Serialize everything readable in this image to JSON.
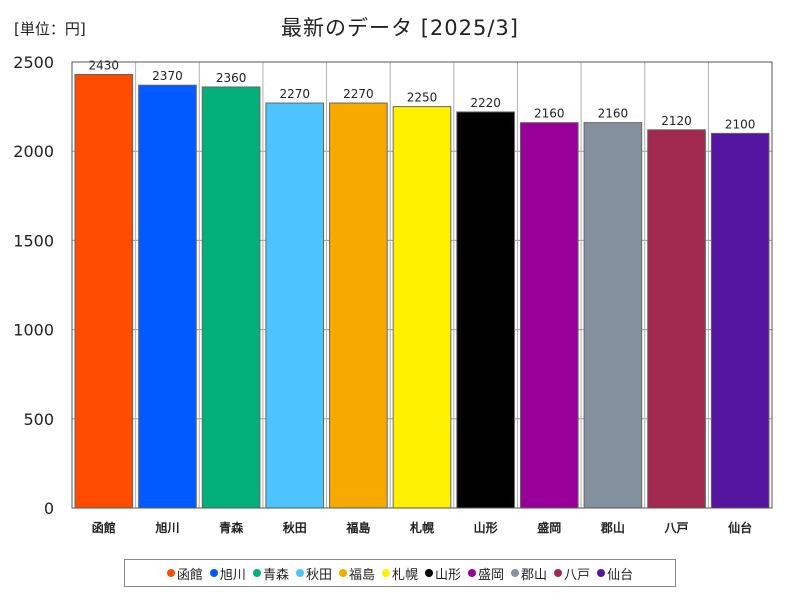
{
  "chart_data": {
    "type": "bar",
    "title": "最新のデータ [2025/3]",
    "unit_label": "[単位：円]",
    "categories": [
      "函館",
      "旭川",
      "青森",
      "秋田",
      "福島",
      "札幌",
      "山形",
      "盛岡",
      "郡山",
      "八戸",
      "仙台"
    ],
    "values": [
      2430,
      2370,
      2360,
      2270,
      2270,
      2250,
      2220,
      2160,
      2160,
      2120,
      2100
    ],
    "value_labels": [
      "2430",
      "2370",
      "2360",
      "2270",
      "2270",
      "2250",
      "2220",
      "2160",
      "2160",
      "2120",
      "2100"
    ],
    "colors": [
      "#ff4b00",
      "#005aff",
      "#03af7a",
      "#4dc4ff",
      "#f6aa00",
      "#fff100",
      "#000000",
      "#990099",
      "#84919e",
      "#a1284f",
      "#5515a0"
    ],
    "ylim": [
      0,
      2500
    ],
    "yticks": [
      0,
      500,
      1000,
      1500,
      2000,
      2500
    ],
    "ytick_labels": [
      "0",
      "500",
      "1000",
      "1500",
      "2000",
      "2500"
    ],
    "grid": true,
    "legend": "bottom"
  }
}
